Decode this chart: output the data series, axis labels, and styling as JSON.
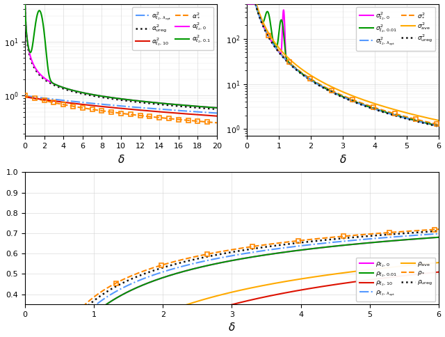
{
  "fig_width": 6.4,
  "fig_height": 4.84,
  "dpi": 100,
  "bg": "#ffffff",
  "lw": 1.5,
  "ms": 4,
  "c_blue": "#5599ff",
  "c_orange": "#ff8800",
  "c_black": "#111111",
  "c_magenta": "#ff00ff",
  "c_red": "#dd1100",
  "c_green": "#009900",
  "c_yellow": "#ffaa00",
  "grid_color": "#cccccc",
  "legend_fontsize": 6.5,
  "tick_fontsize": 8,
  "xlabel_fontsize": 11
}
